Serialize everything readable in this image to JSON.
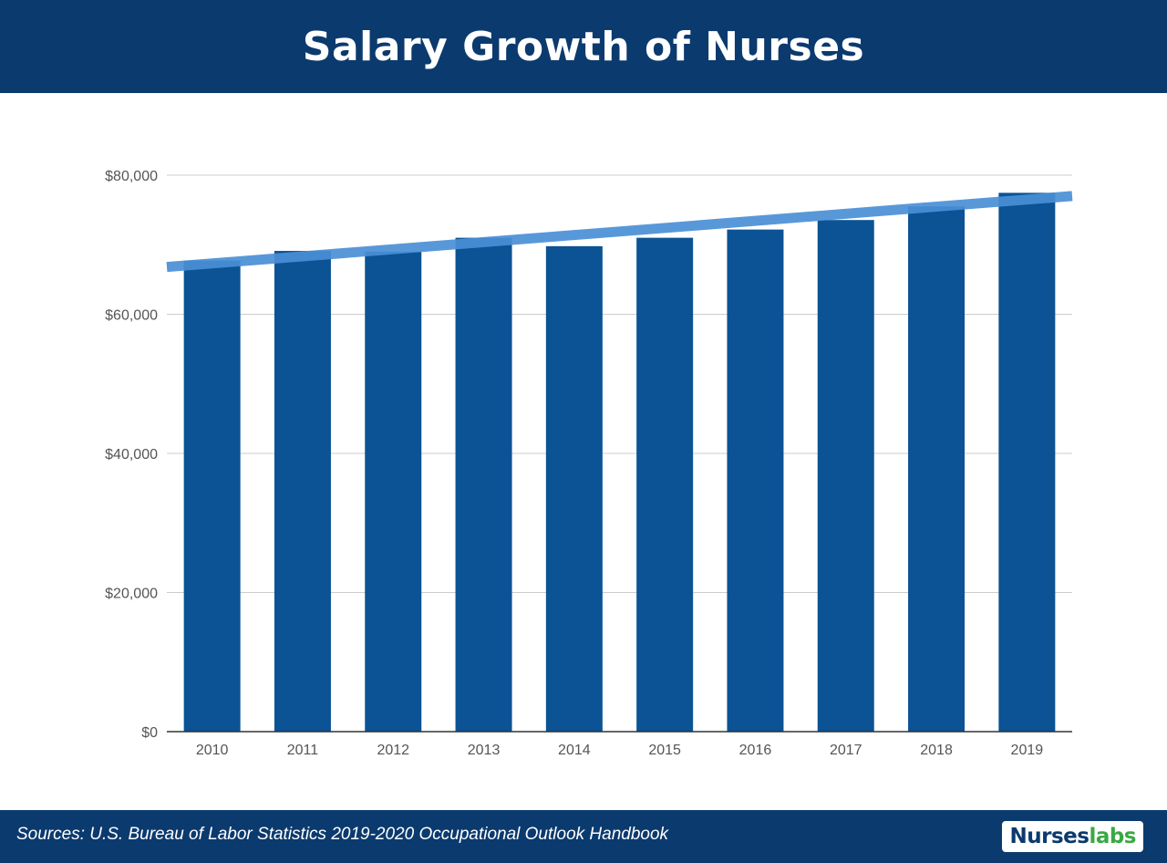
{
  "header": {
    "title": "Salary Growth of Nurses"
  },
  "chart_data": {
    "type": "bar",
    "title": "Salary Growth of Nurses",
    "xlabel": "",
    "ylabel": "",
    "categories": [
      "2010",
      "2011",
      "2012",
      "2013",
      "2014",
      "2015",
      "2016",
      "2017",
      "2018",
      "2019"
    ],
    "values": [
      67720,
      69110,
      69000,
      71000,
      69790,
      71000,
      72180,
      73550,
      75510,
      77460
    ],
    "ylim": [
      0,
      80000
    ],
    "yticks": [
      0,
      20000,
      40000,
      60000,
      80000
    ],
    "ytick_labels": [
      "$0",
      "$20,000",
      "$40,000",
      "$60,000",
      "$80,000"
    ],
    "trendline": {
      "start": 66800,
      "end": 77000
    },
    "grid": true,
    "legend": "none"
  },
  "colors": {
    "header_bg": "#0b3a6e",
    "bar": "#0b5394",
    "trendline": "#4a8fd6",
    "grid": "#cccccc",
    "axis_text": "#555555",
    "logo_green": "#3aa845"
  },
  "footer": {
    "source": "Sources: U.S. Bureau of Labor Statistics 2019-2020 Occupational Outlook Handbook",
    "logo_part_a": "Nurses",
    "logo_part_b": "labs"
  }
}
